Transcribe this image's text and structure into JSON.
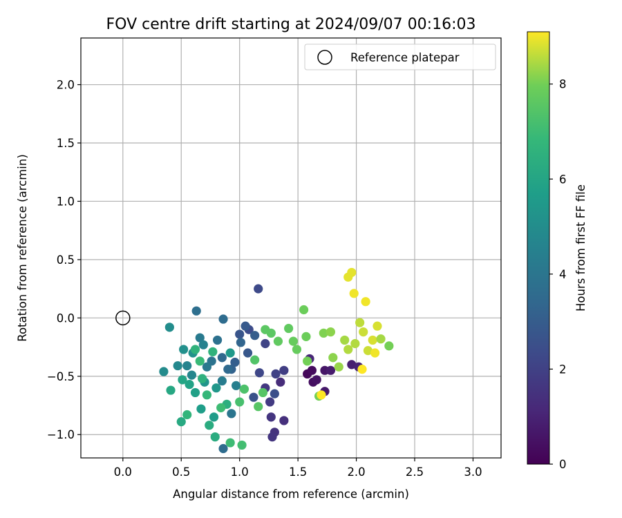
{
  "chart_data": {
    "type": "scatter",
    "title": "FOV centre drift starting at 2024/09/07 00:16:03",
    "xlabel": "Angular distance from reference (arcmin)",
    "ylabel": "Rotation from reference (arcmin)",
    "xlim": [
      -0.36,
      3.24
    ],
    "ylim": [
      -1.2,
      2.4
    ],
    "xticks": [
      "0.0",
      "0.5",
      "1.0",
      "1.5",
      "2.0",
      "2.5",
      "3.0"
    ],
    "xtick_values": [
      0,
      0.5,
      1.0,
      1.5,
      2.0,
      2.5,
      3.0
    ],
    "yticks": [
      "−1.0",
      "−0.5",
      "0.0",
      "0.5",
      "1.0",
      "1.5",
      "2.0"
    ],
    "ytick_values": [
      -1.0,
      -0.5,
      0.0,
      0.5,
      1.0,
      1.5,
      2.0
    ],
    "grid": true,
    "legend": {
      "placement": "top-right",
      "entries": [
        "Reference platepar"
      ]
    },
    "reference_point": {
      "x": 0.0,
      "y": 0.0
    },
    "colorbar": {
      "label": "Hours from first FF file",
      "colormap": "viridis",
      "range": [
        0,
        9.1
      ],
      "ticks": [
        "0",
        "2",
        "4",
        "6",
        "8"
      ],
      "tick_values": [
        0,
        2,
        4,
        6,
        8
      ]
    },
    "points": [
      {
        "x": 1.58,
        "y": -0.48,
        "h": 0.2
      },
      {
        "x": 1.62,
        "y": -0.45,
        "h": 0.3
      },
      {
        "x": 1.63,
        "y": -0.55,
        "h": 0.4
      },
      {
        "x": 1.66,
        "y": -0.53,
        "h": 0.5
      },
      {
        "x": 1.73,
        "y": -0.45,
        "h": 0.6
      },
      {
        "x": 1.73,
        "y": -0.63,
        "h": 0.7
      },
      {
        "x": 1.78,
        "y": -0.45,
        "h": 0.8
      },
      {
        "x": 1.96,
        "y": -0.4,
        "h": 0.9
      },
      {
        "x": 2.02,
        "y": -0.42,
        "h": 1.0
      },
      {
        "x": 1.6,
        "y": -0.35,
        "h": 1.1
      },
      {
        "x": 1.35,
        "y": -0.55,
        "h": 1.3
      },
      {
        "x": 1.38,
        "y": -0.88,
        "h": 1.4
      },
      {
        "x": 1.3,
        "y": -0.98,
        "h": 1.5
      },
      {
        "x": 1.27,
        "y": -0.85,
        "h": 1.6
      },
      {
        "x": 1.28,
        "y": -1.02,
        "h": 1.6
      },
      {
        "x": 1.22,
        "y": -0.6,
        "h": 1.7
      },
      {
        "x": 1.26,
        "y": -0.72,
        "h": 1.8
      },
      {
        "x": 1.38,
        "y": -0.45,
        "h": 1.9
      },
      {
        "x": 1.31,
        "y": -0.48,
        "h": 2.0
      },
      {
        "x": 1.22,
        "y": -0.22,
        "h": 2.1
      },
      {
        "x": 1.17,
        "y": -0.47,
        "h": 2.2
      },
      {
        "x": 1.16,
        "y": 0.25,
        "h": 2.3
      },
      {
        "x": 1.08,
        "y": -0.1,
        "h": 2.4
      },
      {
        "x": 1.3,
        "y": -0.65,
        "h": 2.5
      },
      {
        "x": 1.12,
        "y": -0.68,
        "h": 2.6
      },
      {
        "x": 1.0,
        "y": -0.14,
        "h": 2.7
      },
      {
        "x": 1.07,
        "y": -0.3,
        "h": 2.8
      },
      {
        "x": 1.05,
        "y": -0.07,
        "h": 2.9
      },
      {
        "x": 1.13,
        "y": -0.15,
        "h": 3.0
      },
      {
        "x": 0.96,
        "y": -0.38,
        "h": 3.1
      },
      {
        "x": 0.93,
        "y": -0.44,
        "h": 3.2
      },
      {
        "x": 1.01,
        "y": -0.21,
        "h": 3.3
      },
      {
        "x": 0.85,
        "y": -0.34,
        "h": 3.4
      },
      {
        "x": 0.9,
        "y": -0.44,
        "h": 3.5
      },
      {
        "x": 0.86,
        "y": -1.12,
        "h": 3.6
      },
      {
        "x": 0.86,
        "y": -0.01,
        "h": 3.6
      },
      {
        "x": 0.63,
        "y": 0.06,
        "h": 3.7
      },
      {
        "x": 0.81,
        "y": -0.19,
        "h": 3.8
      },
      {
        "x": 0.76,
        "y": -0.37,
        "h": 3.9
      },
      {
        "x": 0.93,
        "y": -0.82,
        "h": 4.0
      },
      {
        "x": 0.72,
        "y": -0.42,
        "h": 4.1
      },
      {
        "x": 0.66,
        "y": -0.17,
        "h": 4.2
      },
      {
        "x": 0.85,
        "y": -0.54,
        "h": 4.3
      },
      {
        "x": 0.97,
        "y": -0.58,
        "h": 4.4
      },
      {
        "x": 0.69,
        "y": -0.23,
        "h": 4.5
      },
      {
        "x": 0.55,
        "y": -0.41,
        "h": 4.6
      },
      {
        "x": 0.59,
        "y": -0.49,
        "h": 4.7
      },
      {
        "x": 0.47,
        "y": -0.41,
        "h": 4.8
      },
      {
        "x": 0.35,
        "y": -0.46,
        "h": 4.9
      },
      {
        "x": 0.4,
        "y": -0.08,
        "h": 5.0
      },
      {
        "x": 0.52,
        "y": -0.27,
        "h": 5.1
      },
      {
        "x": 0.6,
        "y": -0.3,
        "h": 5.2
      },
      {
        "x": 0.7,
        "y": -0.55,
        "h": 5.3
      },
      {
        "x": 0.8,
        "y": -0.6,
        "h": 5.4
      },
      {
        "x": 0.92,
        "y": -0.3,
        "h": 5.5
      },
      {
        "x": 0.78,
        "y": -0.85,
        "h": 5.6
      },
      {
        "x": 0.67,
        "y": -0.78,
        "h": 5.7
      },
      {
        "x": 0.62,
        "y": -0.64,
        "h": 5.8
      },
      {
        "x": 0.57,
        "y": -0.57,
        "h": 5.9
      },
      {
        "x": 0.51,
        "y": -0.53,
        "h": 6.0
      },
      {
        "x": 0.41,
        "y": -0.62,
        "h": 6.1
      },
      {
        "x": 0.5,
        "y": -0.89,
        "h": 6.2
      },
      {
        "x": 0.74,
        "y": -0.92,
        "h": 6.3
      },
      {
        "x": 0.79,
        "y": -1.02,
        "h": 6.3
      },
      {
        "x": 0.89,
        "y": -0.74,
        "h": 6.4
      },
      {
        "x": 0.68,
        "y": -0.52,
        "h": 6.5
      },
      {
        "x": 0.77,
        "y": -0.29,
        "h": 6.6
      },
      {
        "x": 0.62,
        "y": -0.27,
        "h": 6.6
      },
      {
        "x": 0.55,
        "y": -0.83,
        "h": 6.7
      },
      {
        "x": 0.72,
        "y": -0.66,
        "h": 6.8
      },
      {
        "x": 0.66,
        "y": -0.37,
        "h": 6.9
      },
      {
        "x": 0.84,
        "y": -0.77,
        "h": 7.0
      },
      {
        "x": 0.92,
        "y": -1.07,
        "h": 7.0
      },
      {
        "x": 1.02,
        "y": -1.09,
        "h": 7.1
      },
      {
        "x": 1.0,
        "y": -0.72,
        "h": 7.2
      },
      {
        "x": 1.04,
        "y": -0.61,
        "h": 7.3
      },
      {
        "x": 1.13,
        "y": -0.36,
        "h": 7.4
      },
      {
        "x": 1.16,
        "y": -0.76,
        "h": 7.5
      },
      {
        "x": 1.2,
        "y": -0.64,
        "h": 7.5
      },
      {
        "x": 1.22,
        "y": -0.1,
        "h": 7.6
      },
      {
        "x": 1.27,
        "y": -0.13,
        "h": 7.6
      },
      {
        "x": 1.33,
        "y": -0.2,
        "h": 7.7
      },
      {
        "x": 1.42,
        "y": -0.09,
        "h": 7.7
      },
      {
        "x": 1.46,
        "y": -0.2,
        "h": 7.8
      },
      {
        "x": 1.49,
        "y": -0.27,
        "h": 7.8
      },
      {
        "x": 1.55,
        "y": 0.07,
        "h": 7.9
      },
      {
        "x": 1.57,
        "y": -0.16,
        "h": 7.9
      },
      {
        "x": 1.58,
        "y": -0.37,
        "h": 8.0
      },
      {
        "x": 1.68,
        "y": -0.67,
        "h": 8.0
      },
      {
        "x": 1.72,
        "y": -0.13,
        "h": 8.1
      },
      {
        "x": 1.78,
        "y": -0.12,
        "h": 8.2
      },
      {
        "x": 1.8,
        "y": -0.34,
        "h": 8.2
      },
      {
        "x": 1.85,
        "y": -0.42,
        "h": 8.3
      },
      {
        "x": 1.9,
        "y": -0.19,
        "h": 8.4
      },
      {
        "x": 1.93,
        "y": -0.27,
        "h": 8.5
      },
      {
        "x": 1.99,
        "y": -0.22,
        "h": 8.5
      },
      {
        "x": 2.03,
        "y": -0.04,
        "h": 8.6
      },
      {
        "x": 2.06,
        "y": -0.12,
        "h": 8.7
      },
      {
        "x": 2.1,
        "y": -0.28,
        "h": 8.7
      },
      {
        "x": 2.14,
        "y": -0.19,
        "h": 8.8
      },
      {
        "x": 2.18,
        "y": -0.07,
        "h": 8.8
      },
      {
        "x": 1.93,
        "y": 0.35,
        "h": 8.9
      },
      {
        "x": 1.96,
        "y": 0.39,
        "h": 8.9
      },
      {
        "x": 1.98,
        "y": 0.21,
        "h": 9.0
      },
      {
        "x": 2.08,
        "y": 0.14,
        "h": 9.0
      },
      {
        "x": 1.7,
        "y": -0.66,
        "h": 9.1
      },
      {
        "x": 2.05,
        "y": -0.44,
        "h": 9.1
      },
      {
        "x": 2.16,
        "y": -0.3,
        "h": 9.0
      },
      {
        "x": 2.21,
        "y": -0.18,
        "h": 8.4
      },
      {
        "x": 2.28,
        "y": -0.24,
        "h": 8.0
      }
    ]
  }
}
